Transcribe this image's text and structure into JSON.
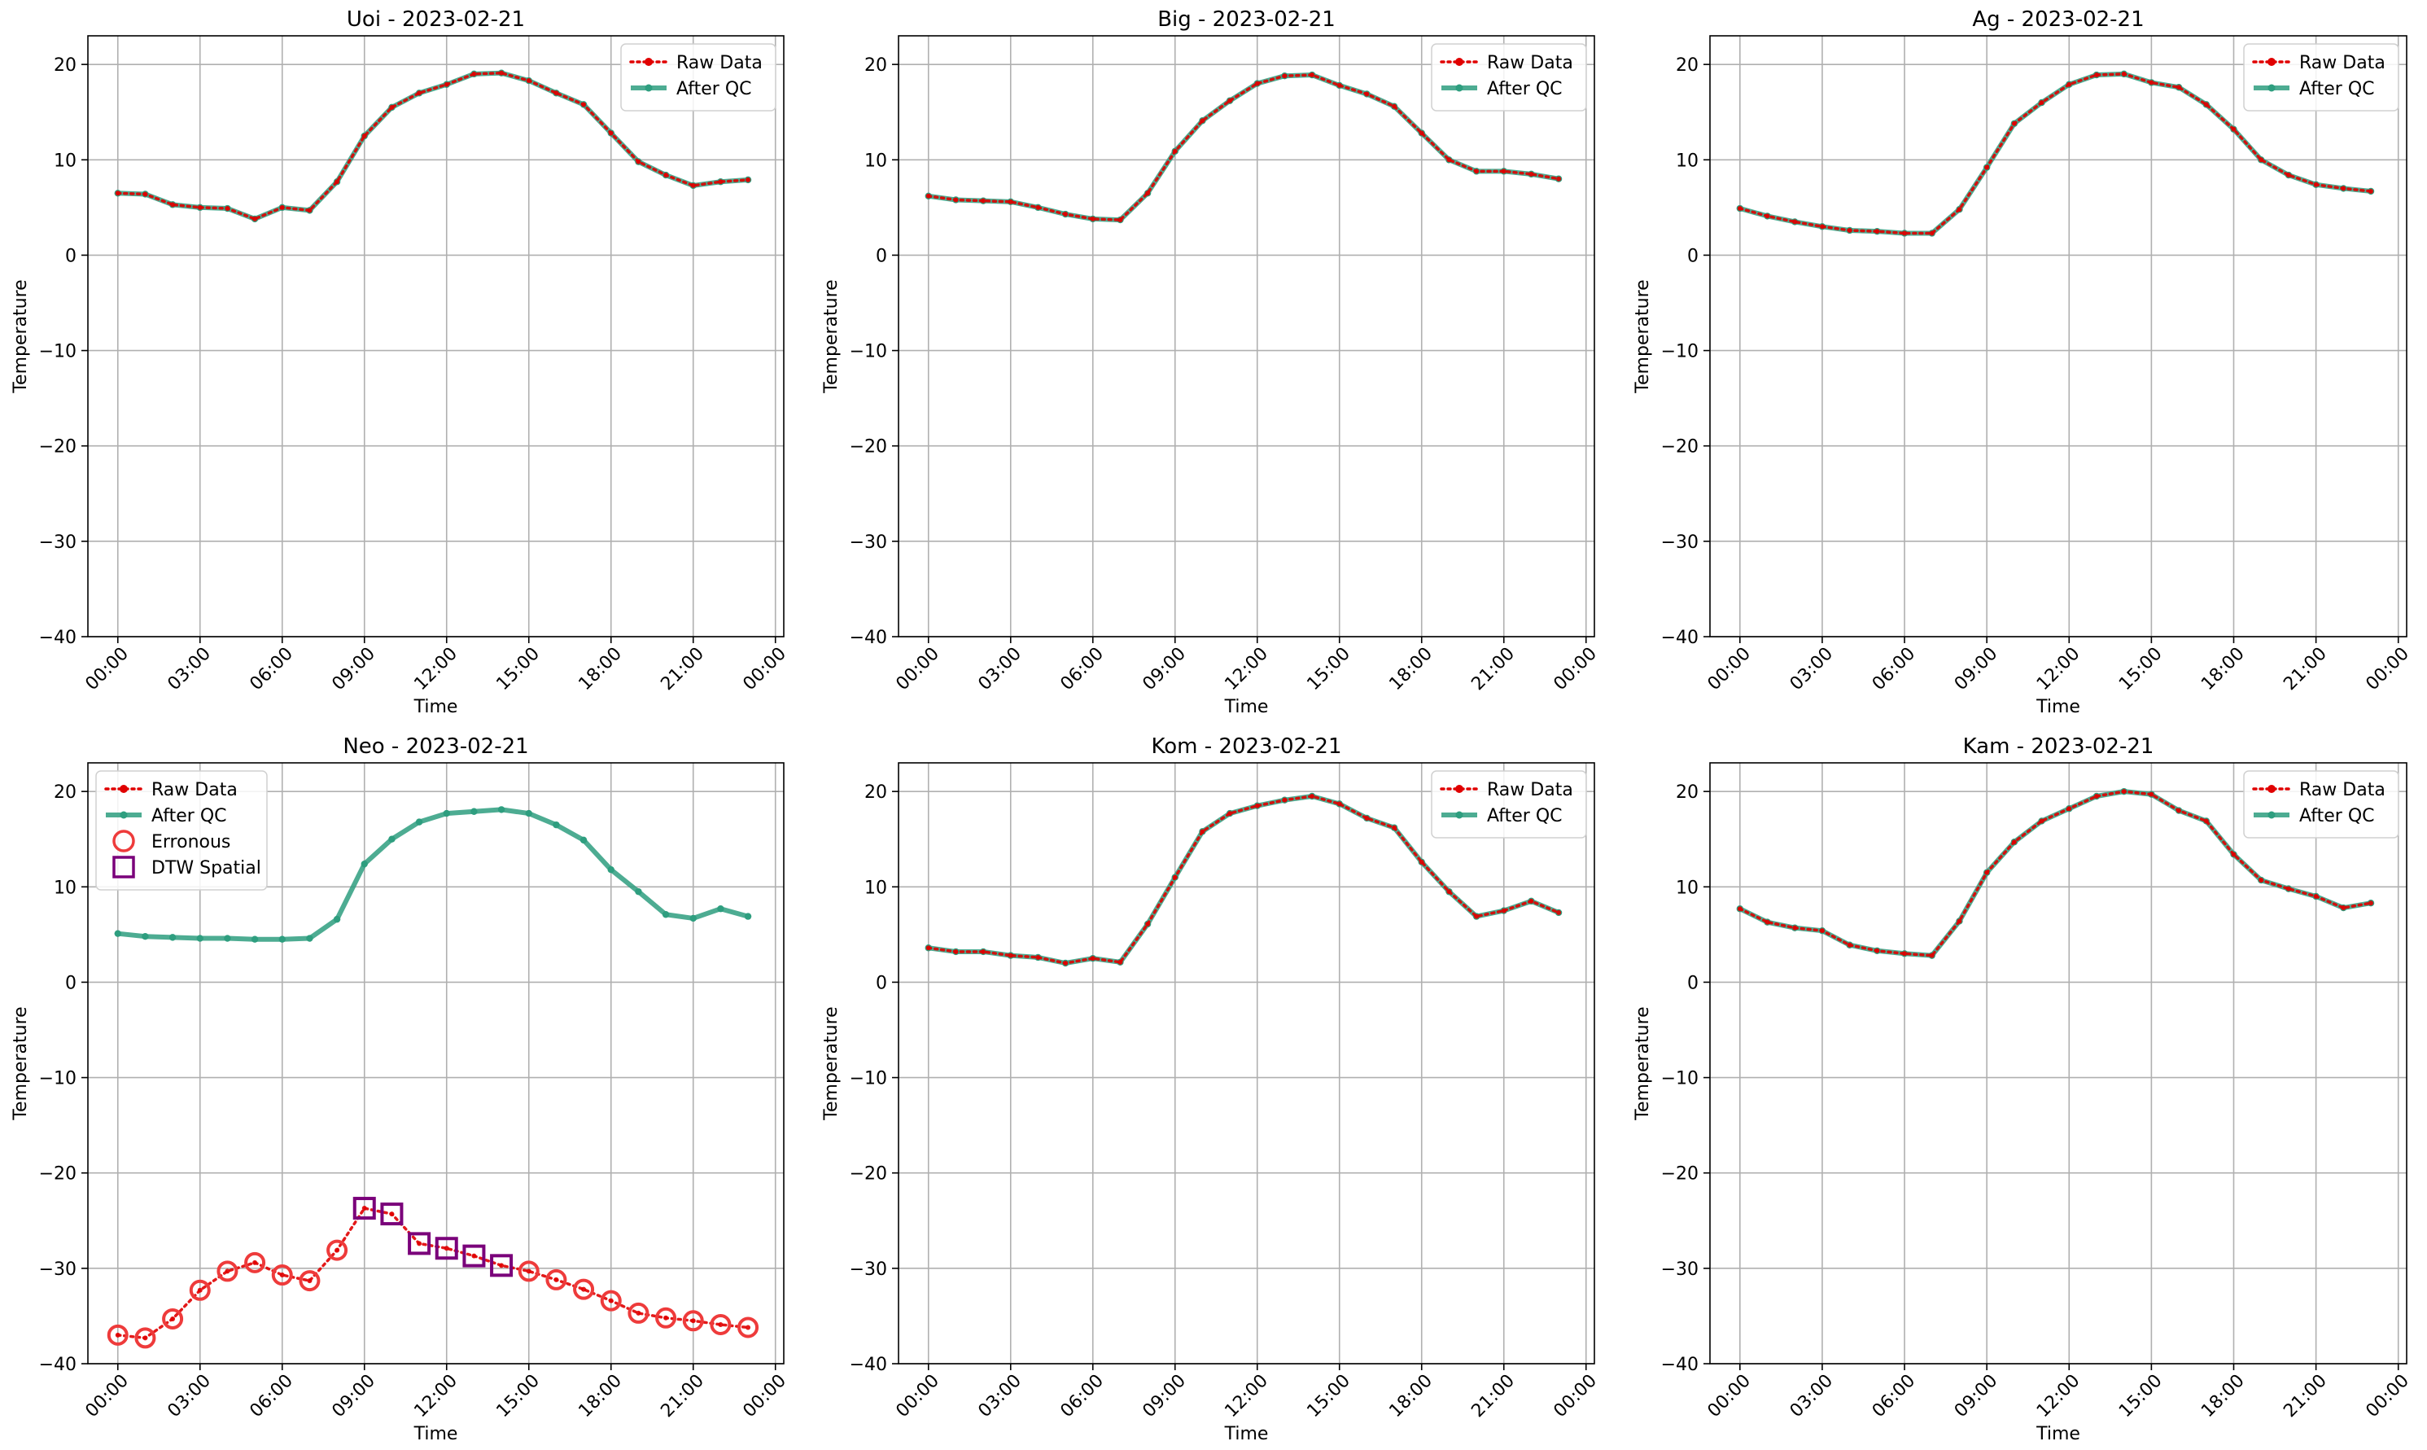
{
  "colors": {
    "raw": "#e00000",
    "qc": "#2e9e7f",
    "erroneous": "#ee3b3b",
    "dtw": "#7a007a",
    "grid": "#b0b0b0"
  },
  "chart_data": [
    {
      "type": "line",
      "title": "Uoi - 2023-02-21",
      "xlabel": "Time",
      "ylabel": "Temperature",
      "ylim": [
        -40,
        23
      ],
      "yticks": [
        20,
        10,
        0,
        -10,
        -20,
        -30,
        -40
      ],
      "xticks": [
        "00:00",
        "03:00",
        "06:00",
        "09:00",
        "12:00",
        "15:00",
        "18:00",
        "21:00",
        "00:00"
      ],
      "x_hours": [
        0,
        1,
        2,
        3,
        4,
        5,
        6,
        7,
        8,
        9,
        10,
        11,
        12,
        13,
        14,
        15,
        16,
        17,
        18,
        19,
        20,
        21,
        22,
        23
      ],
      "legend_placement": "top-right",
      "legend": [
        "Raw Data",
        "After QC"
      ],
      "grid": true,
      "series": [
        {
          "name": "Raw Data",
          "values": [
            6.5,
            6.4,
            5.3,
            5.0,
            4.9,
            3.8,
            5.0,
            4.7,
            7.7,
            12.5,
            15.5,
            17.0,
            17.9,
            19.0,
            19.1,
            18.3,
            17.0,
            15.8,
            12.8,
            9.8,
            8.4,
            7.3,
            7.7,
            7.9
          ]
        },
        {
          "name": "After QC",
          "values": [
            6.5,
            6.4,
            5.3,
            5.0,
            4.9,
            3.8,
            5.0,
            4.7,
            7.7,
            12.5,
            15.5,
            17.0,
            17.9,
            19.0,
            19.1,
            18.3,
            17.0,
            15.8,
            12.8,
            9.8,
            8.4,
            7.3,
            7.7,
            7.9
          ]
        }
      ]
    },
    {
      "type": "line",
      "title": "Big - 2023-02-21",
      "xlabel": "Time",
      "ylabel": "Temperature",
      "ylim": [
        -40,
        23
      ],
      "yticks": [
        20,
        10,
        0,
        -10,
        -20,
        -30,
        -40
      ],
      "xticks": [
        "00:00",
        "03:00",
        "06:00",
        "09:00",
        "12:00",
        "15:00",
        "18:00",
        "21:00",
        "00:00"
      ],
      "x_hours": [
        0,
        1,
        2,
        3,
        4,
        5,
        6,
        7,
        8,
        9,
        10,
        11,
        12,
        13,
        14,
        15,
        16,
        17,
        18,
        19,
        20,
        21,
        22,
        23
      ],
      "legend_placement": "top-right",
      "legend": [
        "Raw Data",
        "After QC"
      ],
      "grid": true,
      "series": [
        {
          "name": "Raw Data",
          "values": [
            6.2,
            5.8,
            5.7,
            5.6,
            5.0,
            4.3,
            3.8,
            3.7,
            6.5,
            10.9,
            14.1,
            16.2,
            18.0,
            18.8,
            18.9,
            17.8,
            16.9,
            15.6,
            12.8,
            10.0,
            8.8,
            8.8,
            8.5,
            8.0
          ]
        },
        {
          "name": "After QC",
          "values": [
            6.2,
            5.8,
            5.7,
            5.6,
            5.0,
            4.3,
            3.8,
            3.7,
            6.5,
            10.9,
            14.1,
            16.2,
            18.0,
            18.8,
            18.9,
            17.8,
            16.9,
            15.6,
            12.8,
            10.0,
            8.8,
            8.8,
            8.5,
            8.0
          ]
        }
      ]
    },
    {
      "type": "line",
      "title": "Ag - 2023-02-21",
      "xlabel": "Time",
      "ylabel": "Temperature",
      "ylim": [
        -40,
        23
      ],
      "yticks": [
        20,
        10,
        0,
        -10,
        -20,
        -30,
        -40
      ],
      "xticks": [
        "00:00",
        "03:00",
        "06:00",
        "09:00",
        "12:00",
        "15:00",
        "18:00",
        "21:00",
        "00:00"
      ],
      "x_hours": [
        0,
        1,
        2,
        3,
        4,
        5,
        6,
        7,
        8,
        9,
        10,
        11,
        12,
        13,
        14,
        15,
        16,
        17,
        18,
        19,
        20,
        21,
        22,
        23
      ],
      "legend_placement": "top-right",
      "legend": [
        "Raw Data",
        "After QC"
      ],
      "grid": true,
      "series": [
        {
          "name": "Raw Data",
          "values": [
            4.9,
            4.1,
            3.5,
            3.0,
            2.6,
            2.5,
            2.3,
            2.3,
            4.8,
            9.2,
            13.8,
            16.0,
            17.9,
            18.9,
            19.0,
            18.1,
            17.6,
            15.8,
            13.2,
            10.0,
            8.4,
            7.4,
            7.0,
            6.7
          ]
        },
        {
          "name": "After QC",
          "values": [
            4.9,
            4.1,
            3.5,
            3.0,
            2.6,
            2.5,
            2.3,
            2.3,
            4.8,
            9.2,
            13.8,
            16.0,
            17.9,
            18.9,
            19.0,
            18.1,
            17.6,
            15.8,
            13.2,
            10.0,
            8.4,
            7.4,
            7.0,
            6.7
          ]
        }
      ]
    },
    {
      "type": "line",
      "title": "Neo - 2023-02-21",
      "xlabel": "Time",
      "ylabel": "Temperature",
      "ylim": [
        -40,
        23
      ],
      "yticks": [
        20,
        10,
        0,
        -10,
        -20,
        -30,
        -40
      ],
      "xticks": [
        "00:00",
        "03:00",
        "06:00",
        "09:00",
        "12:00",
        "15:00",
        "18:00",
        "21:00",
        "00:00"
      ],
      "x_hours": [
        0,
        1,
        2,
        3,
        4,
        5,
        6,
        7,
        8,
        9,
        10,
        11,
        12,
        13,
        14,
        15,
        16,
        17,
        18,
        19,
        20,
        21,
        22,
        23
      ],
      "legend_placement": "top-left",
      "legend": [
        "Raw Data",
        "After QC",
        "Erronous",
        "DTW Spatial"
      ],
      "grid": true,
      "series": [
        {
          "name": "Raw Data",
          "values": [
            -37.0,
            -37.3,
            -35.3,
            -32.3,
            -30.3,
            -29.4,
            -30.7,
            -31.3,
            -28.1,
            -23.7,
            -24.3,
            -27.4,
            -27.9,
            -28.7,
            -29.7,
            -30.3,
            -31.2,
            -32.2,
            -33.4,
            -34.7,
            -35.2,
            -35.5,
            -35.9,
            -36.2
          ]
        },
        {
          "name": "After QC",
          "values": [
            5.1,
            4.8,
            4.7,
            4.6,
            4.6,
            4.5,
            4.5,
            4.6,
            6.6,
            12.4,
            15.0,
            16.8,
            17.7,
            17.9,
            18.1,
            17.7,
            16.5,
            14.9,
            11.8,
            9.5,
            7.1,
            6.7,
            7.7,
            6.9
          ]
        }
      ],
      "erronous_hours": [
        0,
        1,
        2,
        3,
        4,
        5,
        6,
        7,
        8,
        15,
        16,
        17,
        18,
        19,
        20,
        21,
        22,
        23
      ],
      "dtw_spatial_hours": [
        9,
        10,
        11,
        12,
        13,
        14
      ]
    },
    {
      "type": "line",
      "title": "Kom - 2023-02-21",
      "xlabel": "Time",
      "ylabel": "Temperature",
      "ylim": [
        -40,
        23
      ],
      "yticks": [
        20,
        10,
        0,
        -10,
        -20,
        -30,
        -40
      ],
      "xticks": [
        "00:00",
        "03:00",
        "06:00",
        "09:00",
        "12:00",
        "15:00",
        "18:00",
        "21:00",
        "00:00"
      ],
      "x_hours": [
        0,
        1,
        2,
        3,
        4,
        5,
        6,
        7,
        8,
        9,
        10,
        11,
        12,
        13,
        14,
        15,
        16,
        17,
        18,
        19,
        20,
        21,
        22,
        23
      ],
      "legend_placement": "top-right",
      "legend": [
        "Raw Data",
        "After QC"
      ],
      "grid": true,
      "series": [
        {
          "name": "Raw Data",
          "values": [
            3.6,
            3.2,
            3.2,
            2.8,
            2.6,
            2.0,
            2.5,
            2.1,
            6.1,
            11.0,
            15.8,
            17.7,
            18.5,
            19.1,
            19.5,
            18.7,
            17.2,
            16.2,
            12.6,
            9.5,
            6.9,
            7.5,
            8.5,
            7.3
          ]
        },
        {
          "name": "After QC",
          "values": [
            3.6,
            3.2,
            3.2,
            2.8,
            2.6,
            2.0,
            2.5,
            2.1,
            6.1,
            11.0,
            15.8,
            17.7,
            18.5,
            19.1,
            19.5,
            18.7,
            17.2,
            16.2,
            12.6,
            9.5,
            6.9,
            7.5,
            8.5,
            7.3
          ]
        }
      ]
    },
    {
      "type": "line",
      "title": "Kam - 2023-02-21",
      "xlabel": "Time",
      "ylabel": "Temperature",
      "ylim": [
        -40,
        23
      ],
      "yticks": [
        20,
        10,
        0,
        -10,
        -20,
        -30,
        -40
      ],
      "xticks": [
        "00:00",
        "03:00",
        "06:00",
        "09:00",
        "12:00",
        "15:00",
        "18:00",
        "21:00",
        "00:00"
      ],
      "x_hours": [
        0,
        1,
        2,
        3,
        4,
        5,
        6,
        7,
        8,
        9,
        10,
        11,
        12,
        13,
        14,
        15,
        16,
        17,
        18,
        19,
        20,
        21,
        22,
        23
      ],
      "legend_placement": "top-right",
      "legend": [
        "Raw Data",
        "After QC"
      ],
      "grid": true,
      "series": [
        {
          "name": "Raw Data",
          "values": [
            7.7,
            6.3,
            5.7,
            5.4,
            3.9,
            3.3,
            3.0,
            2.8,
            6.4,
            11.5,
            14.7,
            16.9,
            18.2,
            19.5,
            20.0,
            19.7,
            18.0,
            16.9,
            13.4,
            10.7,
            9.8,
            9.0,
            7.8,
            8.3
          ]
        },
        {
          "name": "After QC",
          "values": [
            7.7,
            6.3,
            5.7,
            5.4,
            3.9,
            3.3,
            3.0,
            2.8,
            6.4,
            11.5,
            14.7,
            16.9,
            18.2,
            19.5,
            20.0,
            19.7,
            18.0,
            16.9,
            13.4,
            10.7,
            9.8,
            9.0,
            7.8,
            8.3
          ]
        }
      ]
    }
  ]
}
